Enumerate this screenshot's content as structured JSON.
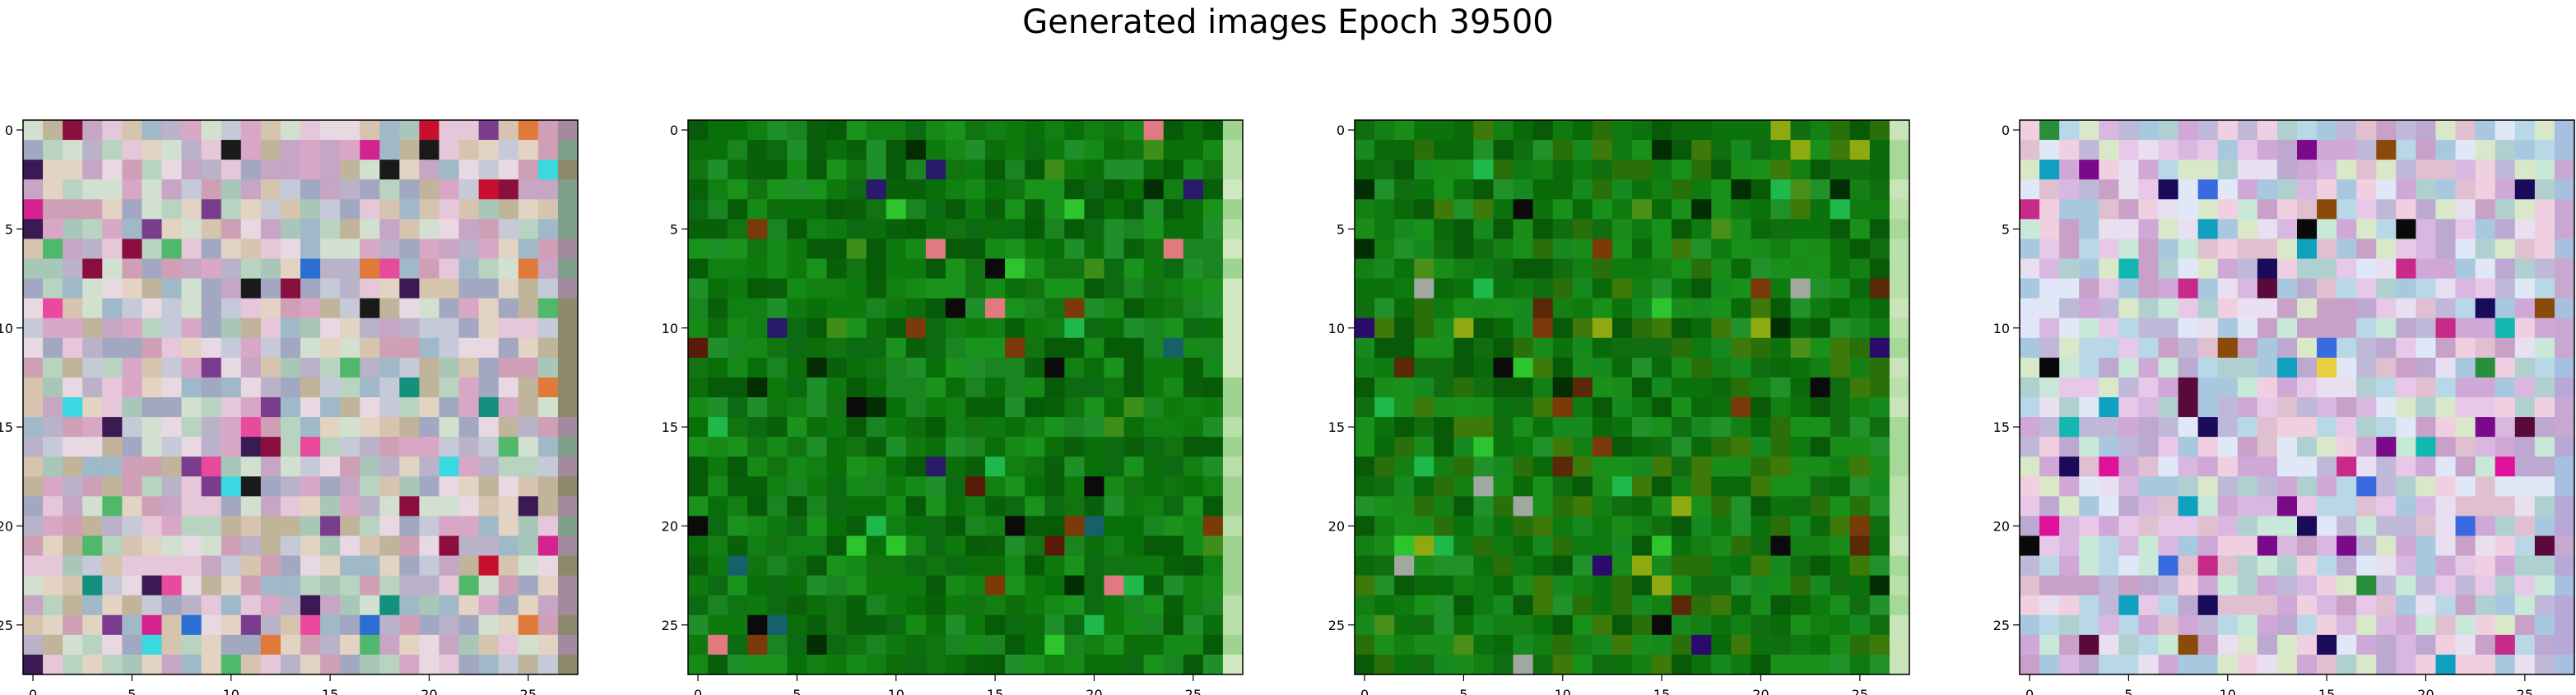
{
  "figure": {
    "title": "Generated images Epoch 39500"
  },
  "chart_data": [
    {
      "type": "heatmap",
      "palette_name": "pastel noise",
      "size": [
        28,
        28
      ],
      "x_ticks": [
        "0",
        "5",
        "10",
        "15",
        "20",
        "25"
      ],
      "y_ticks": [
        "0",
        "5",
        "10",
        "15",
        "20",
        "25"
      ],
      "xlim": [
        -0.5,
        27.5
      ],
      "ylim": [
        27.5,
        -0.5
      ],
      "palette": [
        "#b9b2c9",
        "#c7a5c4",
        "#d6c4ae",
        "#a9c7b9",
        "#d9a7c6",
        "#c5c9d8",
        "#e2d3c2",
        "#9fb9c9",
        "#cfa0b5",
        "#b8d4c0",
        "#e6c6d9",
        "#a3a8c2",
        "#d2e0d0",
        "#c0b49a",
        "#e8d8e2"
      ],
      "accents": [
        "#c8102e",
        "#d4238f",
        "#3b1a54",
        "#14907f",
        "#3ad8e0",
        "#8a0e3e",
        "#e07a3a",
        "#ea4a9e",
        "#1a1a1a",
        "#7a3d8e",
        "#4fb86a",
        "#2a6fd1"
      ],
      "edge_column_palette": [
        "#8c8a6a",
        "#a48a9e",
        "#7fa08a"
      ]
    },
    {
      "type": "heatmap",
      "palette_name": "green noise",
      "size": [
        28,
        28
      ],
      "x_ticks": [
        "0",
        "5",
        "10",
        "15",
        "20",
        "25"
      ],
      "y_ticks": [
        "0",
        "5",
        "10",
        "15",
        "20",
        "25"
      ],
      "xlim": [
        -0.5,
        27.5
      ],
      "ylim": [
        27.5,
        -0.5
      ],
      "palette": [
        "#0b6e0b",
        "#127f12",
        "#097009",
        "#168a16",
        "#0a5f0a",
        "#1f8f2a",
        "#0e7a0e",
        "#075a07",
        "#19931b",
        "#117411",
        "#0c6a12",
        "#1a8420"
      ],
      "accents": [
        "#2ec42e",
        "#032d03",
        "#5a1a08",
        "#0b0b0b",
        "#e07a80",
        "#2a1a6a",
        "#3d8f1a",
        "#1fb84a",
        "#7a3a0a",
        "#16606a"
      ],
      "edge_column_palette": [
        "#b8e0a8",
        "#cfe8c0",
        "#9ed490"
      ]
    },
    {
      "type": "heatmap",
      "palette_name": "green noise",
      "size": [
        28,
        28
      ],
      "x_ticks": [
        "0",
        "5",
        "10",
        "15",
        "20",
        "25"
      ],
      "y_ticks": [
        "0",
        "5",
        "10",
        "15",
        "20",
        "25"
      ],
      "xlim": [
        -0.5,
        27.5
      ],
      "ylim": [
        27.5,
        -0.5
      ],
      "palette": [
        "#0a6a0a",
        "#148014",
        "#0c720c",
        "#1a8c1a",
        "#085a08",
        "#21912a",
        "#106e10",
        "#3d7a0a",
        "#18901a",
        "#0f7a0f",
        "#2a700a",
        "#178a1f"
      ],
      "accents": [
        "#2ec42e",
        "#032d03",
        "#5a2a08",
        "#0b0b0b",
        "#8faa10",
        "#2a0a6a",
        "#7a3a0a",
        "#1fb84a",
        "#a0a8a0",
        "#4a8f1a"
      ],
      "edge_column_palette": [
        "#b8e0a8",
        "#c8e4b8",
        "#a6d898"
      ]
    },
    {
      "type": "heatmap",
      "palette_name": "pastel noise",
      "size": [
        28,
        28
      ],
      "x_ticks": [
        "0",
        "5",
        "10",
        "15",
        "20",
        "25"
      ],
      "y_ticks": [
        "0",
        "5",
        "10",
        "15",
        "20",
        "25"
      ],
      "xlim": [
        -0.5,
        27.5
      ],
      "ylim": [
        27.5,
        -0.5
      ],
      "palette": [
        "#d8b8e0",
        "#b8d8e8",
        "#e0c0d0",
        "#c8e8d8",
        "#d0a8d8",
        "#e8e0f0",
        "#a8c8e0",
        "#f0d0e0",
        "#c0b8d8",
        "#d8e8c8",
        "#e8c8e8",
        "#b0d0d0",
        "#c8a0c8",
        "#e0e8f8",
        "#bca8d0"
      ],
      "accents": [
        "#0a0a0a",
        "#1a0a5a",
        "#e0109a",
        "#12b8b0",
        "#5a0a3a",
        "#7a0a8a",
        "#2a8f3a",
        "#e8d040",
        "#3a6ae0",
        "#8a4a0a",
        "#10a0c0",
        "#c82a8a"
      ],
      "edge_column_palette": [
        "#b8a8d8",
        "#a8c0e0",
        "#c8a8d0"
      ]
    }
  ]
}
